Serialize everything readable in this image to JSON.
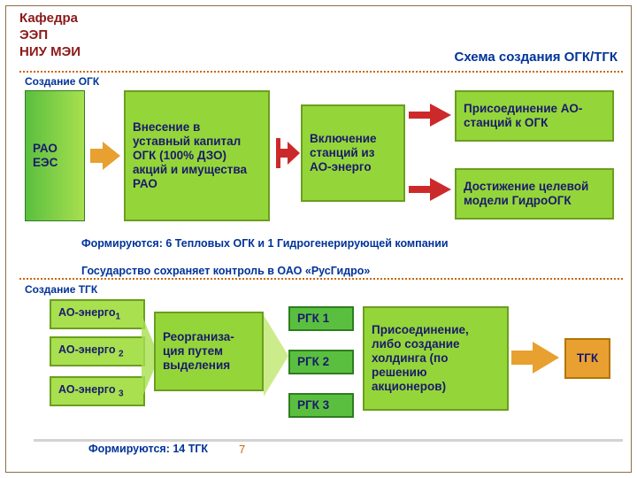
{
  "header": {
    "dept_line1": "Кафедра",
    "dept_line2": "ЭЭП",
    "dept_line3": "НИУ МЭИ",
    "title": "Схема создания ОГК/ТГК"
  },
  "ogk": {
    "section": "Создание ОГК",
    "rao": "РАО ЕЭС",
    "step2": "Внесение в уставный капитал ОГК (100% ДЗО) акций и имущества РАО",
    "step3": "Включение станций из АО-энерго",
    "out1": "Присоединение АО-станций к ОГК",
    "out2": "Достижение целевой модели ГидроОГК",
    "note1": "Формируются: 6 Тепловых ОГК и 1 Гидрогенерирующей компании",
    "note2": "Государство сохраняет контроль в ОАО «РусГидро»"
  },
  "tgk": {
    "section": "Создание ТГК",
    "ao1": "АО-энерго",
    "ao1_sub": "1",
    "ao2": "АО-энерго",
    "ao2_sub": "2",
    "ao3": "АО-энерго",
    "ao3_sub": "3",
    "reorg": "Реорганиза-ция путем выделения",
    "rgk1": "РГК 1",
    "rgk2": "РГК 2",
    "rgk3": "РГК 3",
    "holding": "Присоединение, либо создание холдинга  (по решению акционеров)",
    "result": "ТГК",
    "note3": "Формируются: 14 ТГК"
  },
  "slide_num": "7",
  "colors": {
    "dept": "#8b1a1a",
    "title": "#003399",
    "dotted": "#cc6600",
    "lime": "#94d639",
    "lime_border": "#6b9e1f",
    "green": "#5abf3f",
    "orange": "#e8a030",
    "red": "#cc2a2a"
  }
}
